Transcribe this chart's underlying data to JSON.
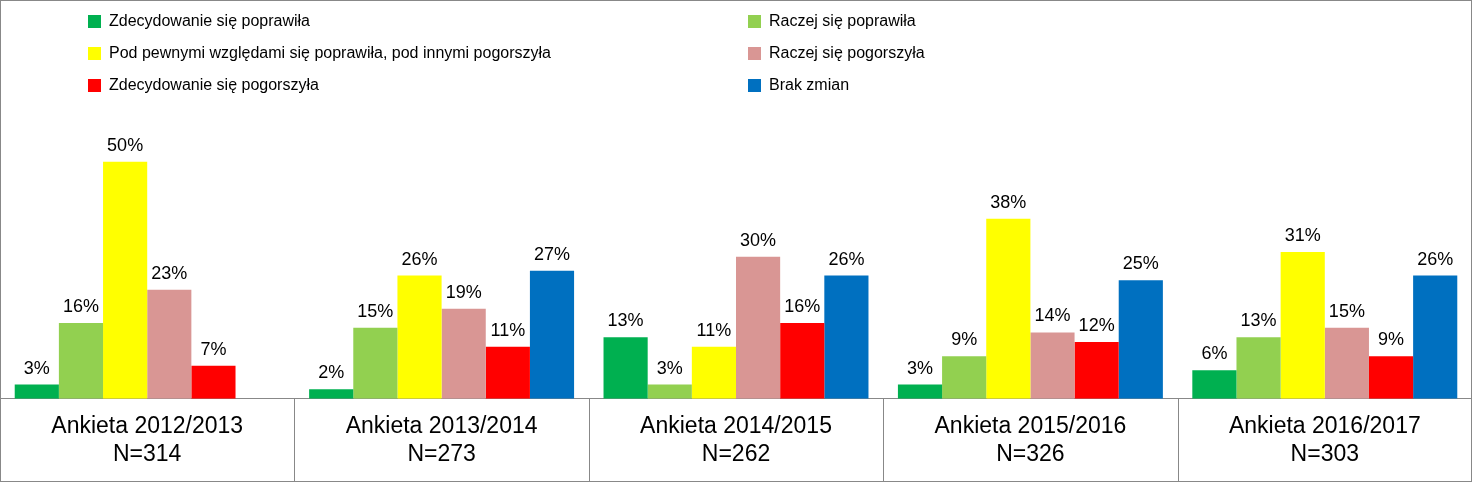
{
  "chart_data": {
    "type": "bar",
    "categories": [
      "Ankieta 2012/2013\nN=314",
      "Ankieta 2013/2014\nN=273",
      "Ankieta 2014/2015\nN=262",
      "Ankieta 2015/2016\nN=326",
      "Ankieta 2016/2017\nN=303"
    ],
    "series": [
      {
        "name": "Zdecydowanie się poprawiła",
        "color": "#00b050",
        "values": [
          3,
          2,
          13,
          3,
          6
        ],
        "value_labels": [
          "3%",
          "2%",
          "13%",
          "3%",
          "6%"
        ]
      },
      {
        "name": "Raczej się poprawiła",
        "color": "#92d050",
        "values": [
          16,
          15,
          3,
          9,
          13
        ],
        "value_labels": [
          "16%",
          "15%",
          "3%",
          "9%",
          "13%"
        ]
      },
      {
        "name": "Pod pewnymi względami się poprawiła, pod innymi pogorszyła",
        "color": "#ffff00",
        "values": [
          50,
          26,
          11,
          38,
          31
        ],
        "value_labels": [
          "50%",
          "26%",
          "11%",
          "38%",
          "31%"
        ]
      },
      {
        "name": "Raczej się pogorszyła",
        "color": "#d99694",
        "values": [
          23,
          19,
          30,
          14,
          15
        ],
        "value_labels": [
          "23%",
          "19%",
          "30%",
          "14%",
          "15%"
        ]
      },
      {
        "name": "Zdecydowanie się pogorszyła",
        "color": "#ff0000",
        "values": [
          7,
          11,
          16,
          12,
          9
        ],
        "value_labels": [
          "7%",
          "11%",
          "16%",
          "12%",
          "9%"
        ]
      },
      {
        "name": "Brak zmian",
        "color": "#0070c0",
        "values": [
          null,
          27,
          26,
          25,
          26
        ],
        "value_labels": [
          null,
          "27%",
          "26%",
          "25%",
          "26%"
        ]
      }
    ],
    "legend": "top",
    "grid": false
  }
}
